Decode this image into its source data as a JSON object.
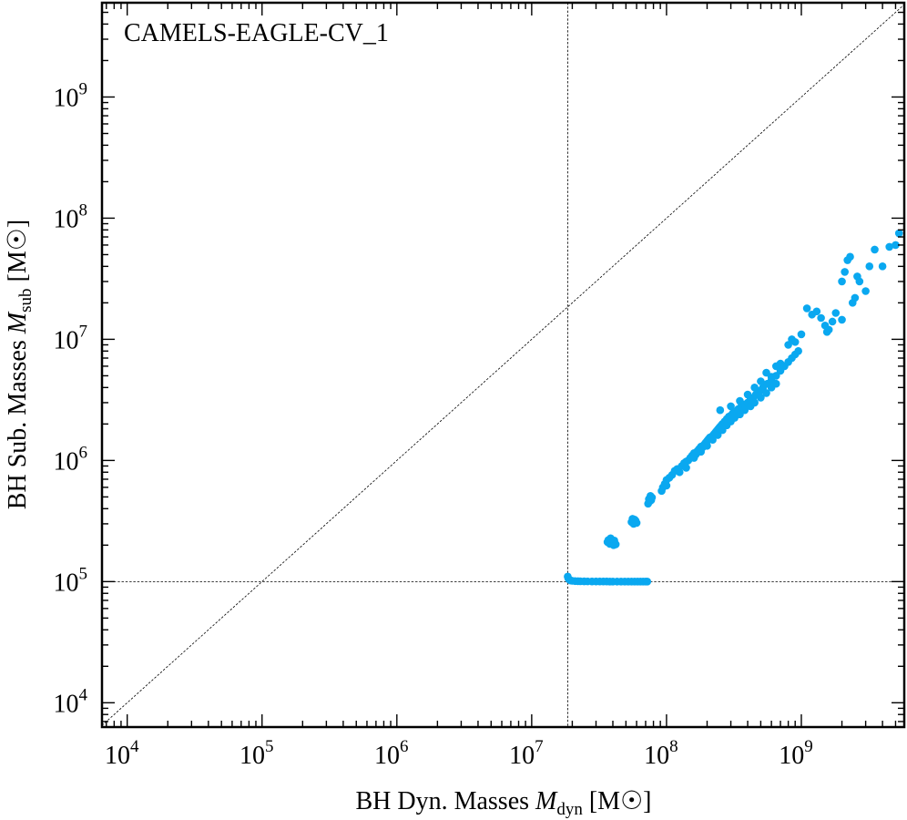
{
  "chart_data": {
    "type": "scatter",
    "title": "CAMELS-EAGLE-CV_1",
    "xlabel": {
      "main": "BH Dyn. Masses ",
      "symbol": "M",
      "subscript": "dyn",
      "unit": " [M☉]"
    },
    "ylabel": {
      "main": "BH Sub. Masses ",
      "symbol": "M",
      "subscript": "sub",
      "unit": " [M☉]"
    },
    "xscale": "log",
    "yscale": "log",
    "xlim": [
      6500,
      5800000000
    ],
    "ylim": [
      6300,
      6000000000
    ],
    "xticks": [
      {
        "value": 10000,
        "base": "10",
        "exp": "4"
      },
      {
        "value": 100000,
        "base": "10",
        "exp": "5"
      },
      {
        "value": 1000000,
        "base": "10",
        "exp": "6"
      },
      {
        "value": 10000000,
        "base": "10",
        "exp": "7"
      },
      {
        "value": 100000000,
        "base": "10",
        "exp": "8"
      },
      {
        "value": 1000000000,
        "base": "10",
        "exp": "9"
      }
    ],
    "yticks": [
      {
        "value": 10000,
        "base": "10",
        "exp": "4"
      },
      {
        "value": 100000,
        "base": "10",
        "exp": "5"
      },
      {
        "value": 1000000,
        "base": "10",
        "exp": "6"
      },
      {
        "value": 10000000,
        "base": "10",
        "exp": "7"
      },
      {
        "value": 100000000,
        "base": "10",
        "exp": "8"
      },
      {
        "value": 1000000000,
        "base": "10",
        "exp": "9"
      }
    ],
    "reference_lines": {
      "identity": true,
      "vertical_x": 18500000,
      "horizontal_y": 100000
    },
    "grid": false,
    "marker_color": "#0aa8f0",
    "line_color": "#000000",
    "points": [
      [
        18500000,
        110000
      ],
      [
        18700000,
        106000
      ],
      [
        19000000,
        104000
      ],
      [
        19500000,
        102000
      ],
      [
        20000000,
        101500
      ],
      [
        21000000,
        101000
      ],
      [
        22000000,
        100800
      ],
      [
        23000000,
        100600
      ],
      [
        24500000,
        100500
      ],
      [
        26000000,
        100400
      ],
      [
        28000000,
        100300
      ],
      [
        30000000,
        100300
      ],
      [
        32000000,
        100200
      ],
      [
        34000000,
        100200
      ],
      [
        36000000,
        100200
      ],
      [
        38000000,
        100100
      ],
      [
        40000000,
        100100
      ],
      [
        43000000,
        100100
      ],
      [
        46000000,
        100100
      ],
      [
        49000000,
        100100
      ],
      [
        52000000,
        100100
      ],
      [
        55000000,
        100100
      ],
      [
        58000000,
        100000
      ],
      [
        61000000,
        100000
      ],
      [
        64000000,
        100000
      ],
      [
        67000000,
        100000
      ],
      [
        70000000,
        100000
      ],
      [
        72000000,
        100000
      ],
      [
        36500000,
        212000
      ],
      [
        37000000,
        220000
      ],
      [
        38000000,
        205000
      ],
      [
        38500000,
        228000
      ],
      [
        39500000,
        210000
      ],
      [
        40500000,
        200000
      ],
      [
        41000000,
        218000
      ],
      [
        42000000,
        203000
      ],
      [
        55000000,
        310000
      ],
      [
        56000000,
        330000
      ],
      [
        57000000,
        300000
      ],
      [
        58000000,
        325000
      ],
      [
        59000000,
        318000
      ],
      [
        60000000,
        305000
      ],
      [
        73000000,
        440000
      ],
      [
        74000000,
        480000
      ],
      [
        75000000,
        460000
      ],
      [
        76000000,
        510000
      ],
      [
        77000000,
        470000
      ],
      [
        78000000,
        495000
      ],
      [
        92000000,
        560000
      ],
      [
        94000000,
        600000
      ],
      [
        97000000,
        640000
      ],
      [
        100000000,
        620000
      ],
      [
        100000000,
        690000
      ],
      [
        105000000,
        720000
      ],
      [
        110000000,
        760000
      ],
      [
        115000000,
        820000
      ],
      [
        120000000,
        850000
      ],
      [
        125000000,
        800000
      ],
      [
        130000000,
        900000
      ],
      [
        135000000,
        950000
      ],
      [
        140000000,
        980000
      ],
      [
        145000000,
        1000000
      ],
      [
        150000000,
        1050000
      ],
      [
        155000000,
        1100000
      ],
      [
        160000000,
        1150000
      ],
      [
        165000000,
        1120000
      ],
      [
        170000000,
        1200000
      ],
      [
        175000000,
        1250000
      ],
      [
        180000000,
        1300000
      ],
      [
        185000000,
        1280000
      ],
      [
        190000000,
        1350000
      ],
      [
        195000000,
        1400000
      ],
      [
        200000000,
        1450000
      ],
      [
        205000000,
        1500000
      ],
      [
        210000000,
        1550000
      ],
      [
        215000000,
        1520000
      ],
      [
        220000000,
        1600000
      ],
      [
        225000000,
        1650000
      ],
      [
        230000000,
        1700000
      ],
      [
        235000000,
        1750000
      ],
      [
        240000000,
        1800000
      ],
      [
        245000000,
        1850000
      ],
      [
        250000000,
        1900000
      ],
      [
        255000000,
        1950000
      ],
      [
        260000000,
        2000000
      ],
      [
        270000000,
        2100000
      ],
      [
        280000000,
        2200000
      ],
      [
        290000000,
        2300000
      ],
      [
        300000000,
        2350000
      ],
      [
        310000000,
        2450000
      ],
      [
        320000000,
        2500000
      ],
      [
        330000000,
        2550000
      ],
      [
        340000000,
        2650000
      ],
      [
        350000000,
        2700000
      ],
      [
        360000000,
        2800000
      ],
      [
        380000000,
        2900000
      ],
      [
        400000000,
        3000000
      ],
      [
        420000000,
        3200000
      ],
      [
        440000000,
        3300000
      ],
      [
        460000000,
        3500000
      ],
      [
        480000000,
        3600000
      ],
      [
        500000000,
        3800000
      ],
      [
        520000000,
        4000000
      ],
      [
        560000000,
        4300000
      ],
      [
        600000000,
        4600000
      ],
      [
        650000000,
        5000000
      ],
      [
        700000000,
        5500000
      ],
      [
        750000000,
        6000000
      ],
      [
        800000000,
        6500000
      ],
      [
        850000000,
        7000000
      ],
      [
        900000000,
        7500000
      ],
      [
        950000000,
        8000000
      ],
      [
        140000000,
        870000
      ],
      [
        160000000,
        1050000
      ],
      [
        180000000,
        1180000
      ],
      [
        200000000,
        1320000
      ],
      [
        220000000,
        1480000
      ],
      [
        240000000,
        1620000
      ],
      [
        260000000,
        1780000
      ],
      [
        280000000,
        1950000
      ],
      [
        300000000,
        2100000
      ],
      [
        320000000,
        2250000
      ],
      [
        350000000,
        2400000
      ],
      [
        380000000,
        2600000
      ],
      [
        420000000,
        2800000
      ],
      [
        450000000,
        3000000
      ],
      [
        500000000,
        3300000
      ],
      [
        550000000,
        3600000
      ],
      [
        600000000,
        4000000
      ],
      [
        650000000,
        4300000
      ],
      [
        250000000,
        2600000
      ],
      [
        300000000,
        2800000
      ],
      [
        350000000,
        3100000
      ],
      [
        400000000,
        3500000
      ],
      [
        450000000,
        4000000
      ],
      [
        500000000,
        4500000
      ],
      [
        550000000,
        5300000
      ],
      [
        600000000,
        4900000
      ],
      [
        650000000,
        6000000
      ],
      [
        700000000,
        6300000
      ],
      [
        800000000,
        9000000
      ],
      [
        850000000,
        10000000
      ],
      [
        900000000,
        9500000
      ],
      [
        1000000000,
        11000000
      ],
      [
        1100000000,
        18000000
      ],
      [
        1200000000,
        16000000
      ],
      [
        1300000000,
        17000000
      ],
      [
        1400000000,
        15000000
      ],
      [
        1500000000,
        13000000
      ],
      [
        1600000000,
        12000000
      ],
      [
        1700000000,
        14000000
      ],
      [
        1800000000,
        16500000
      ],
      [
        2000000000,
        14500000
      ],
      [
        1550000000,
        11500000
      ],
      [
        2000000000,
        30000000
      ],
      [
        2100000000,
        36000000
      ],
      [
        2200000000,
        45000000
      ],
      [
        2300000000,
        48000000
      ],
      [
        2400000000,
        20000000
      ],
      [
        2500000000,
        22000000
      ],
      [
        2600000000,
        33000000
      ],
      [
        2700000000,
        30000000
      ],
      [
        3000000000,
        25000000
      ],
      [
        3200000000,
        40000000
      ],
      [
        3500000000,
        55000000
      ],
      [
        4000000000,
        40000000
      ],
      [
        4500000000,
        58000000
      ],
      [
        5000000000,
        60000000
      ],
      [
        5300000000,
        75000000
      ]
    ]
  }
}
